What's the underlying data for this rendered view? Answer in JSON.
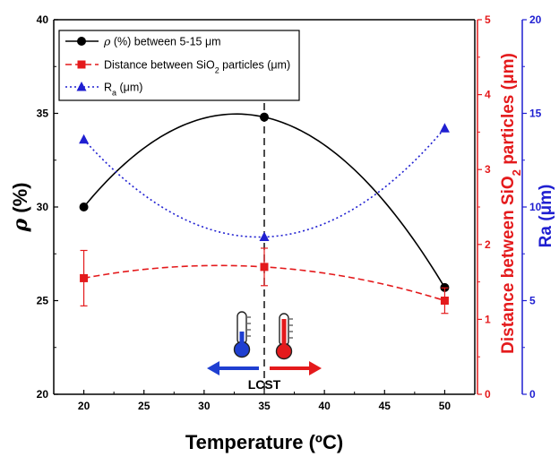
{
  "chart_data": {
    "type": "line",
    "x_label_prefix": "Temperature (",
    "x_label_unit": "ºC",
    "x_label_suffix": ")",
    "x_ticks": [
      20,
      25,
      30,
      35,
      40,
      45,
      50
    ],
    "xlim": [
      17.5,
      52.5
    ],
    "axes": {
      "left": {
        "label_symbol": "ρ",
        "label_rest": " (%)",
        "ylim": [
          20,
          40
        ],
        "ticks": [
          20,
          25,
          30,
          35,
          40
        ],
        "color": "#000000"
      },
      "right1": {
        "label_main": "Distance between SiO",
        "label_sub": "2",
        "label_end": " particles (μm)",
        "ylim": [
          0,
          5
        ],
        "ticks": [
          0,
          1,
          2,
          3,
          4,
          5
        ],
        "color": "#e41a1c"
      },
      "right2": {
        "label": "Ra (μm)",
        "ylim": [
          0,
          20
        ],
        "ticks": [
          0,
          5,
          10,
          15,
          20
        ],
        "color": "#1f1fd1"
      }
    },
    "series": [
      {
        "name_symbol": "ρ",
        "name_rest": " (%) between 5-15 μm",
        "axis": "left",
        "color": "#000000",
        "line_style": "solid",
        "marker": "circle",
        "x": [
          20,
          35,
          50
        ],
        "y": [
          30.0,
          34.8,
          25.7
        ]
      },
      {
        "name_main": "Distance between SiO",
        "name_sub": "2",
        "name_end": " particles (μm)",
        "axis": "right1",
        "color": "#e41a1c",
        "line_style": "dashed",
        "marker": "square",
        "x": [
          20,
          35,
          50
        ],
        "y": [
          1.55,
          1.7,
          1.25
        ],
        "error": [
          0.37,
          0.25,
          0.17
        ]
      },
      {
        "name_main": "R",
        "name_sub": "a",
        "name_end": " (μm)",
        "axis": "right2",
        "color": "#1f1fd1",
        "line_style": "dotted",
        "marker": "triangle",
        "x": [
          20,
          35,
          50
        ],
        "y": [
          13.6,
          8.4,
          14.2
        ]
      }
    ],
    "annotations": {
      "vline_x": 35,
      "vline_label": "LCST",
      "cold_color": "#1f3fd1",
      "hot_color": "#e41a1c"
    },
    "legend_position": "top-left",
    "grid": false
  }
}
